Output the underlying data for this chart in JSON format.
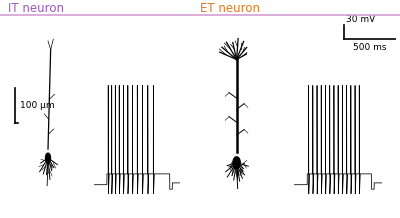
{
  "it_label": "IT neuron",
  "et_label": "ET neuron",
  "it_color": "#9B59B6",
  "et_color": "#E07820",
  "background_color": "#FFFFFF",
  "scale_bar_morpho": "100 μm",
  "scale_bar_voltage": "30 mV",
  "scale_bar_time": "500 ms",
  "fig_width": 4.0,
  "fig_height": 2.18,
  "dpi": 100,
  "border_color": "#D4A0D4",
  "trace_color": "#000000",
  "morph_color": "#000000"
}
